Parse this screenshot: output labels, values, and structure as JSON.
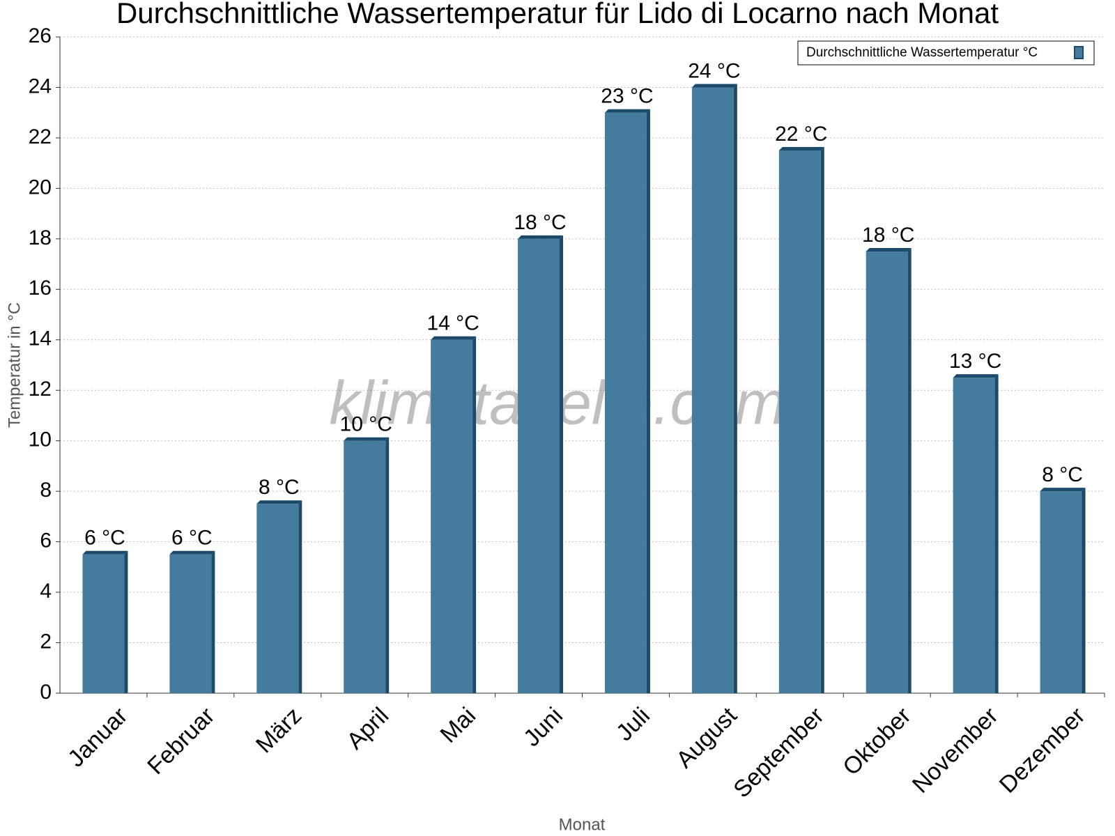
{
  "chart_data": {
    "type": "bar",
    "title": "Durchschnittliche Wassertemperatur für Lido di Locarno nach Monat",
    "x_label": "Monat",
    "y_label": "Temperatur in °C",
    "watermark": "klimatabelle.com",
    "categories": [
      "Januar",
      "Februar",
      "März",
      "April",
      "Mai",
      "Juni",
      "Juli",
      "August",
      "September",
      "Oktober",
      "November",
      "Dezember"
    ],
    "series": [
      {
        "name": "Durchschnittliche Wassertemperatur °C",
        "color": "#457b9d",
        "values": [
          5.5,
          5.5,
          7.5,
          10,
          14,
          18,
          23,
          24,
          21.5,
          17.5,
          12.5,
          8
        ],
        "value_labels": [
          "6 °C",
          "6 °C",
          "8 °C",
          "10 °C",
          "14 °C",
          "18 °C",
          "23 °C",
          "24 °C",
          "22 °C",
          "18 °C",
          "13 °C",
          "8 °C"
        ]
      }
    ],
    "ylim": [
      0,
      26
    ],
    "yticks": [
      0,
      2,
      4,
      6,
      8,
      10,
      12,
      14,
      16,
      18,
      20,
      22,
      24,
      26
    ],
    "grid": true,
    "legend": "top-right"
  }
}
